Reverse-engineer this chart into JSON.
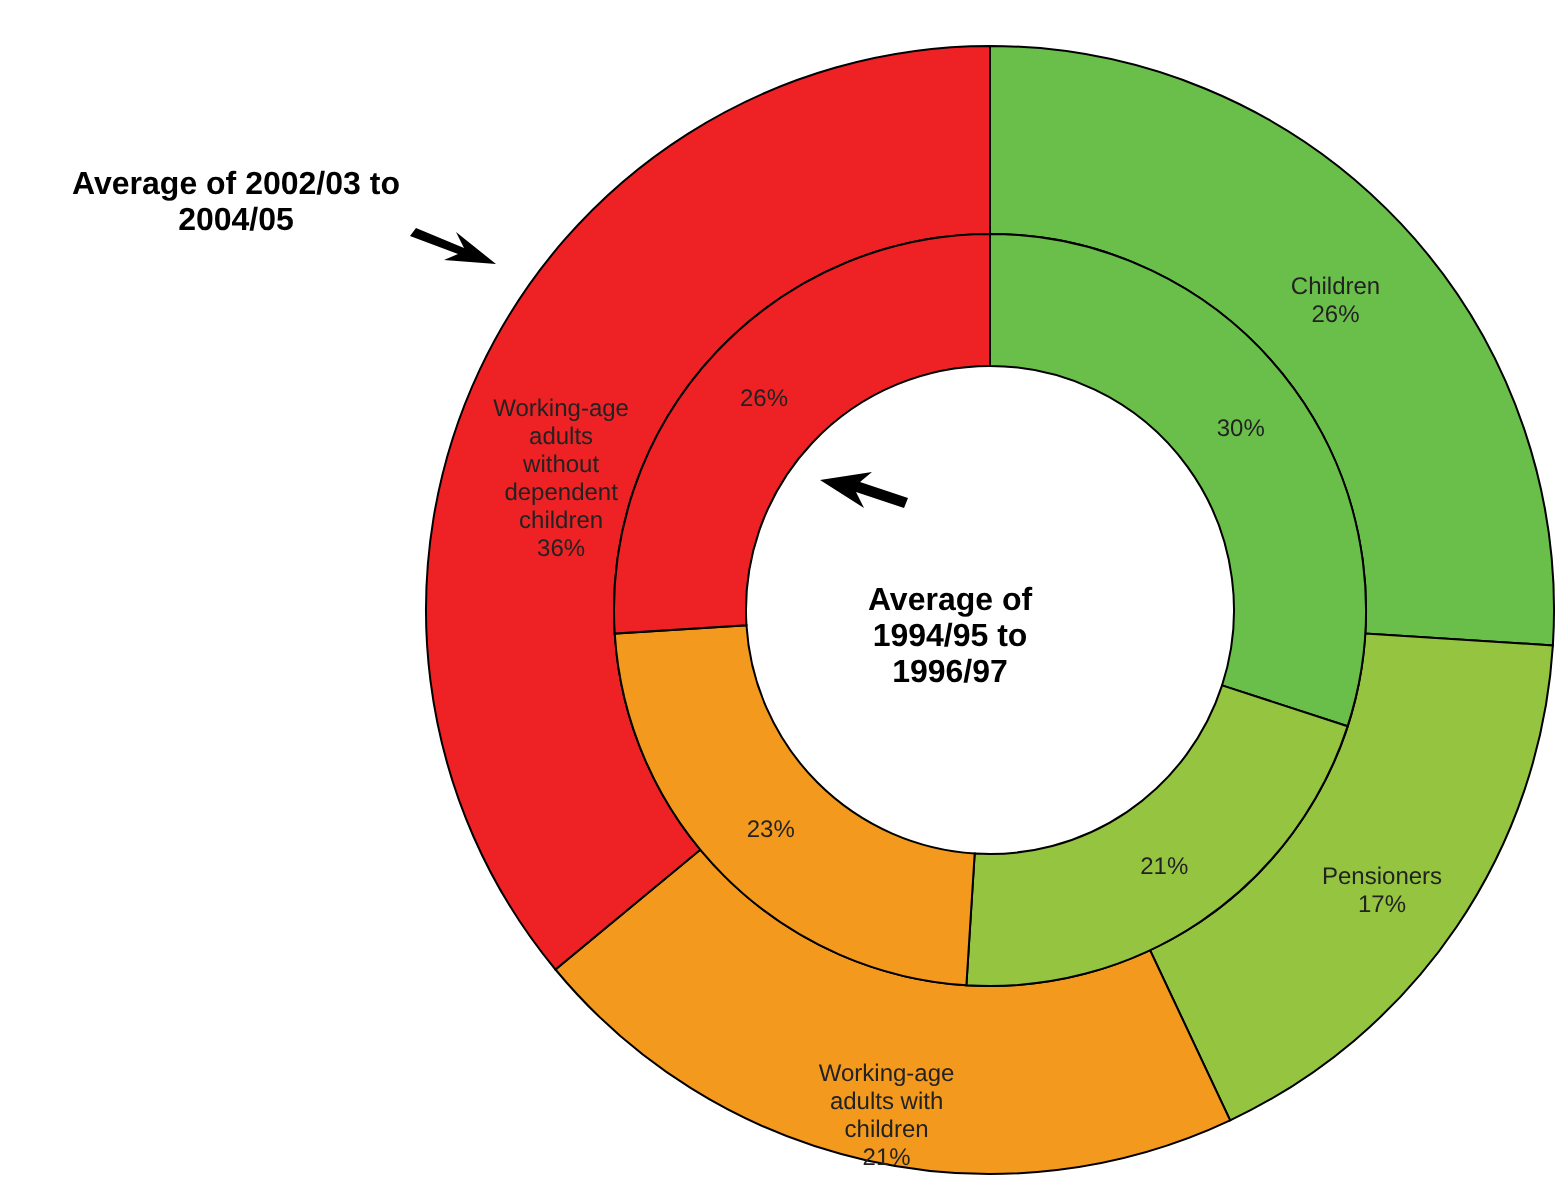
{
  "chart_data": {
    "type": "donut",
    "categories": [
      "Children",
      "Pensioners",
      "Working-age adults with children",
      "Working-age adults without dependent children"
    ],
    "colors": [
      "#6abf4b",
      "#94c440",
      "#f39a1e",
      "#ee2224"
    ],
    "series": [
      {
        "name": "Average of 2002/03 to 2004/05",
        "values": [
          26,
          17,
          21,
          36
        ],
        "value_labels": [
          "26%",
          "17%",
          "21%",
          "36%"
        ]
      },
      {
        "name": "Average of 1994/95 to 1996/97",
        "values": [
          30,
          21,
          23,
          26
        ],
        "value_labels": [
          "30%",
          "21%",
          "23%",
          "26%"
        ]
      }
    ]
  }
}
